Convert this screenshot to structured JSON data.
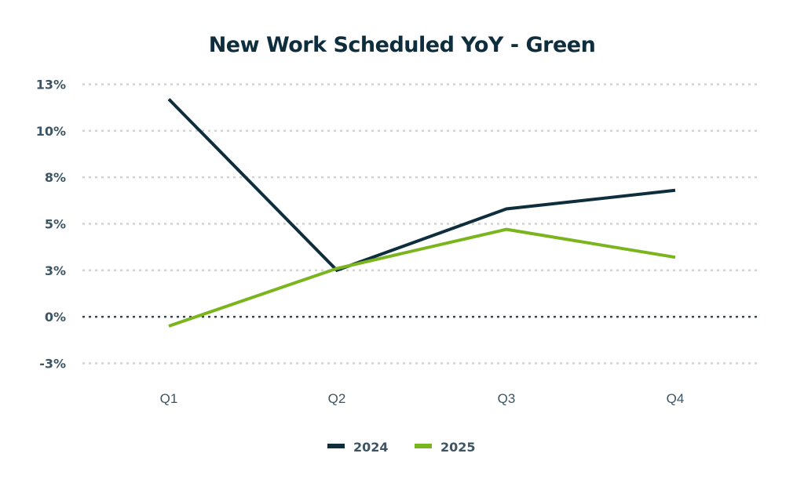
{
  "chart_data": {
    "type": "line",
    "title": "New Work Scheduled YoY - Green",
    "xlabel": "",
    "ylabel": "",
    "categories": [
      "Q1",
      "Q2",
      "Q3",
      "Q4"
    ],
    "y_ticks": [
      {
        "value": 12.5,
        "label": "13%"
      },
      {
        "value": 10,
        "label": "10%"
      },
      {
        "value": 7.5,
        "label": "8%"
      },
      {
        "value": 5,
        "label": "5%"
      },
      {
        "value": 2.5,
        "label": "3%"
      },
      {
        "value": 0,
        "label": "0%"
      },
      {
        "value": -2.5,
        "label": "-3%"
      }
    ],
    "ylim": [
      -2.5,
      12.5
    ],
    "grid": true,
    "legend_position": "bottom",
    "series": [
      {
        "name": "2024",
        "color": "#0f2e3d",
        "values": [
          11.7,
          2.5,
          5.8,
          6.8
        ]
      },
      {
        "name": "2025",
        "color": "#7ab51d",
        "values": [
          -0.5,
          2.6,
          4.7,
          3.2
        ]
      }
    ]
  }
}
